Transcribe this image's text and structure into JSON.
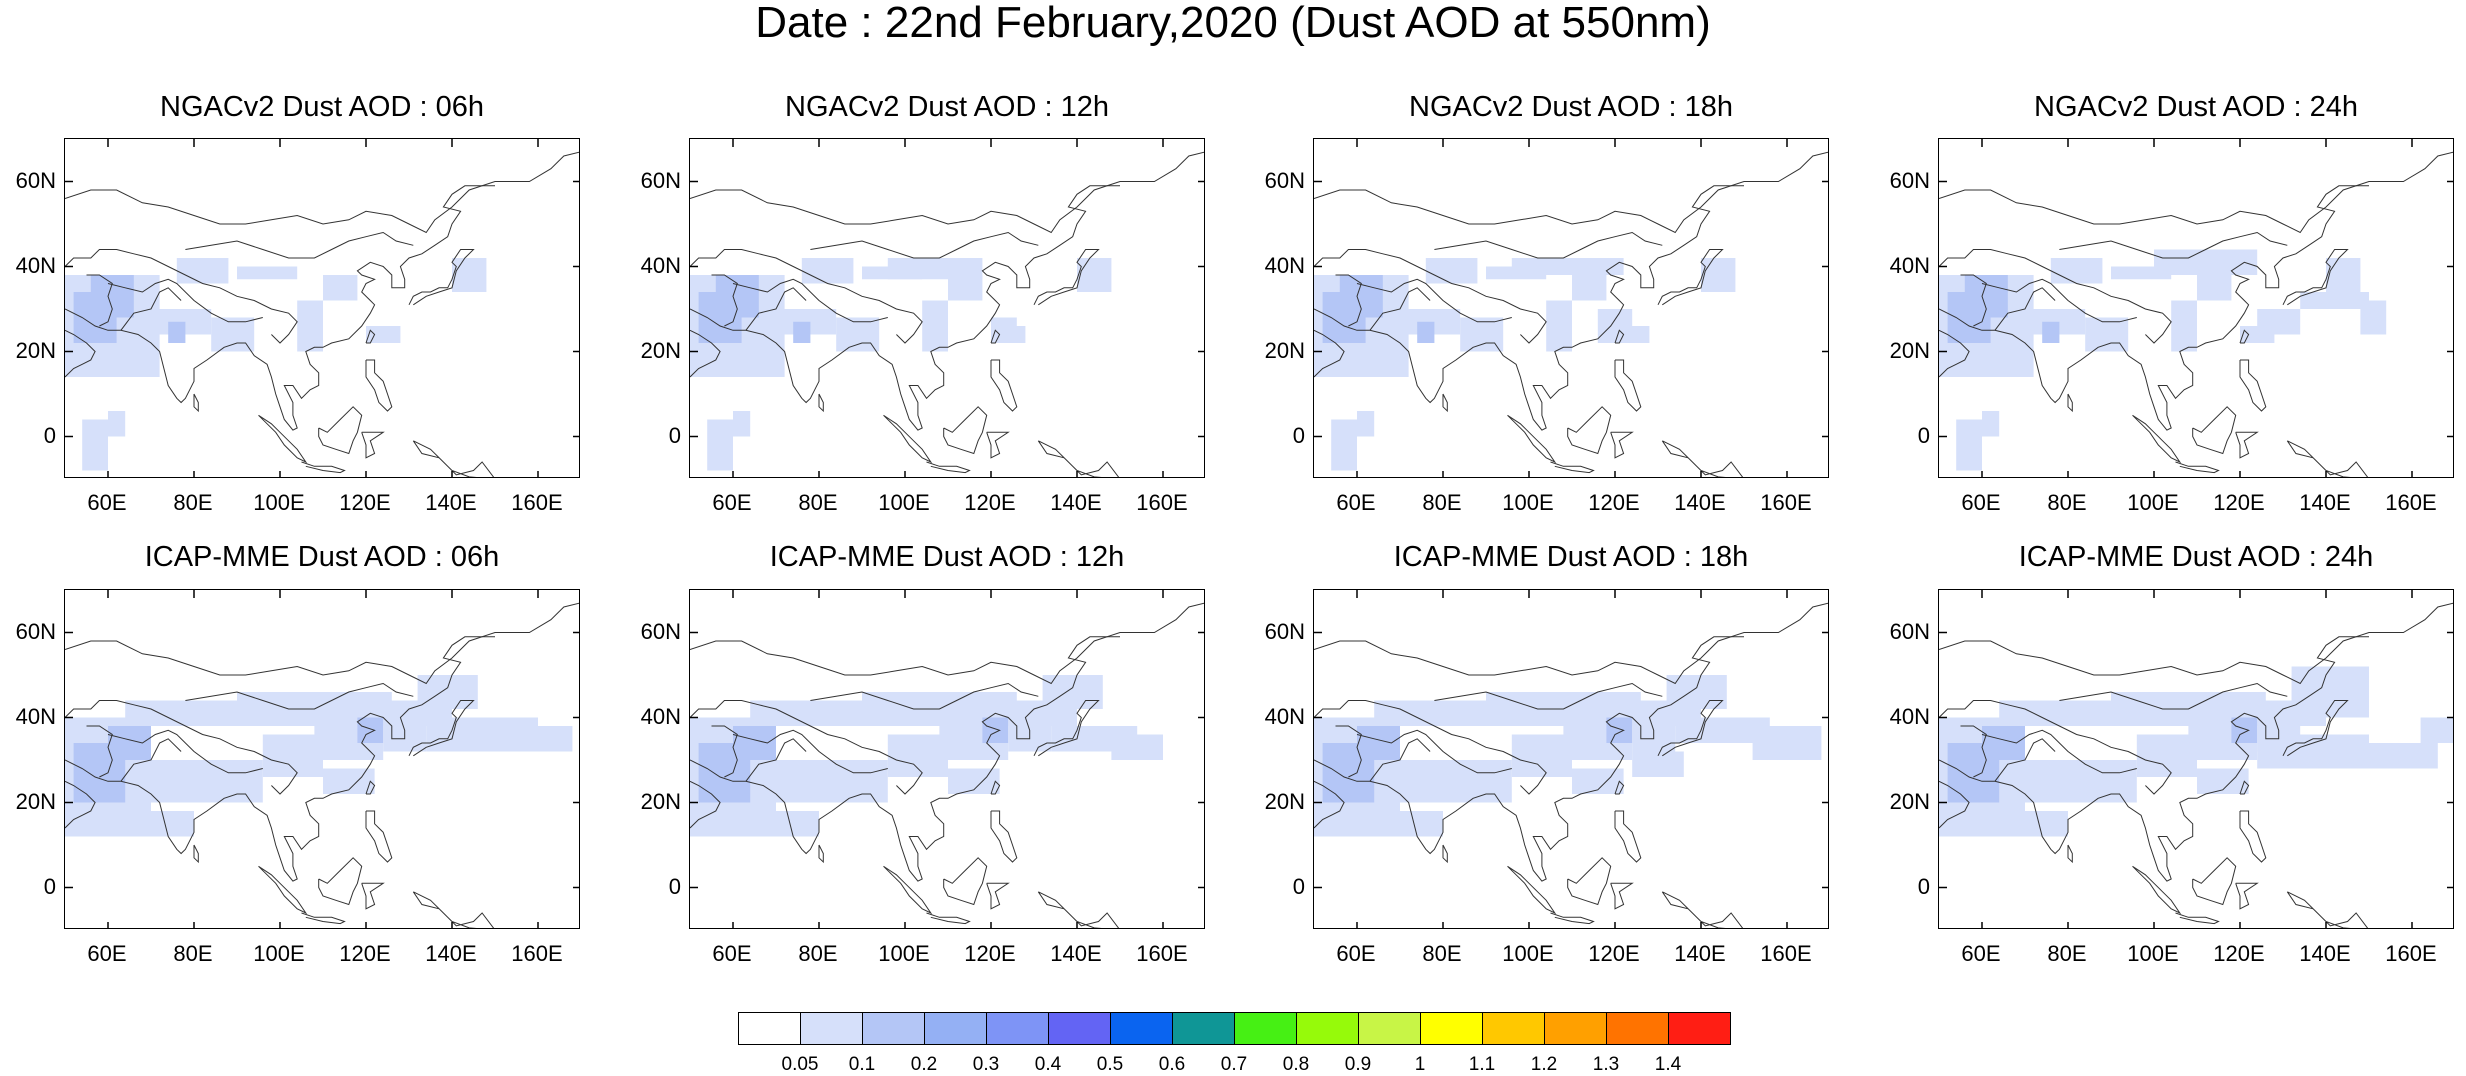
{
  "title": "Date : 22nd February,2020 (Dust AOD at 550nm)",
  "lat_ticks": [
    "60N",
    "40N",
    "20N",
    "0"
  ],
  "lon_ticks": [
    "60E",
    "80E",
    "100E",
    "120E",
    "140E",
    "160E"
  ],
  "lat_values": [
    60,
    40,
    20,
    0
  ],
  "lon_values": [
    60,
    80,
    100,
    120,
    140,
    160
  ],
  "map_extent": {
    "lon": [
      50,
      170
    ],
    "lat": [
      -10,
      70
    ]
  },
  "panels": [
    {
      "title": "NGACv2 Dust AOD : 06h",
      "source": "NGACv2",
      "hour": "06h"
    },
    {
      "title": "NGACv2 Dust AOD : 12h",
      "source": "NGACv2",
      "hour": "12h"
    },
    {
      "title": "NGACv2 Dust AOD : 18h",
      "source": "NGACv2",
      "hour": "18h"
    },
    {
      "title": "NGACv2 Dust AOD : 24h",
      "source": "NGACv2",
      "hour": "24h"
    },
    {
      "title": "ICAP-MME Dust AOD : 06h",
      "source": "ICAP-MME",
      "hour": "06h"
    },
    {
      "title": "ICAP-MME Dust AOD : 12h",
      "source": "ICAP-MME",
      "hour": "12h"
    },
    {
      "title": "ICAP-MME Dust AOD : 18h",
      "source": "ICAP-MME",
      "hour": "18h"
    },
    {
      "title": "ICAP-MME Dust AOD : 24h",
      "source": "ICAP-MME",
      "hour": "24h"
    }
  ],
  "colorbar": {
    "labels": [
      "0.05",
      "0.1",
      "0.2",
      "0.3",
      "0.4",
      "0.5",
      "0.6",
      "0.7",
      "0.8",
      "0.9",
      "1",
      "1.1",
      "1.2",
      "1.3",
      "1.4"
    ],
    "colors": [
      "#ffffff",
      "#d6e0fa",
      "#b4c6f6",
      "#94b0f4",
      "#7e94f6",
      "#6364f4",
      "#0a64f0",
      "#0f9696",
      "#46f014",
      "#96fa0a",
      "#c8f546",
      "#ffff00",
      "#ffc800",
      "#ffa000",
      "#ff7300",
      "#ff1e14"
    ]
  }
}
